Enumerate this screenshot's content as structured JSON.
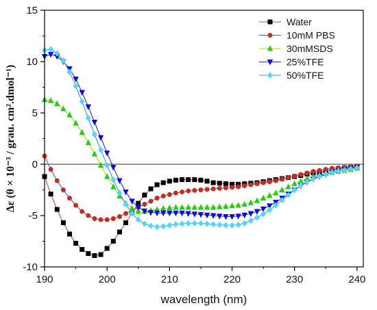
{
  "chart_data": {
    "type": "line",
    "title": "",
    "xlabel": "wavelength (nm)",
    "ylabel": "Δε (θ × 10⁻³ / grau. cm².dmol⁻¹)",
    "xlim": [
      190,
      241
    ],
    "ylim": [
      -10,
      15
    ],
    "x_ticks": [
      "190",
      "200",
      "210",
      "220",
      "230",
      "240"
    ],
    "y_ticks": [
      "-10",
      "-5",
      "0",
      "5",
      "10",
      "15"
    ],
    "zero_line": true,
    "grid": false,
    "legend_position": "top-right",
    "series": [
      {
        "name": "Water",
        "color": "#000000",
        "line_color": "#d04040",
        "marker": "square",
        "x": [
          190,
          191,
          192,
          193,
          194,
          195,
          196,
          197,
          198,
          199,
          200,
          201,
          202,
          203,
          204,
          205,
          206,
          207,
          208,
          209,
          210,
          211,
          212,
          213,
          214,
          215,
          216,
          217,
          218,
          219,
          220,
          221,
          222,
          223,
          224,
          225,
          226,
          227,
          228,
          229,
          230,
          231,
          232,
          233,
          234,
          235,
          236,
          237,
          238,
          239,
          240
        ],
        "y": [
          -1.2,
          -2.9,
          -4.4,
          -5.7,
          -6.8,
          -7.7,
          -8.3,
          -8.7,
          -8.9,
          -8.8,
          -8.2,
          -7.5,
          -6.6,
          -5.7,
          -4.7,
          -3.8,
          -3.0,
          -2.4,
          -2.0,
          -1.8,
          -1.65,
          -1.55,
          -1.5,
          -1.5,
          -1.5,
          -1.55,
          -1.65,
          -1.8,
          -1.85,
          -1.9,
          -1.95,
          -1.95,
          -1.9,
          -1.85,
          -1.8,
          -1.7,
          -1.6,
          -1.5,
          -1.4,
          -1.3,
          -1.2,
          -1.1,
          -0.95,
          -0.85,
          -0.75,
          -0.65,
          -0.55,
          -0.45,
          -0.35,
          -0.3,
          -0.25
        ]
      },
      {
        "name": "10mM PBS",
        "color": "#c03020",
        "line_color": "#4060c0",
        "marker": "circle",
        "x": [
          190,
          191,
          192,
          193,
          194,
          195,
          196,
          197,
          198,
          199,
          200,
          201,
          202,
          203,
          204,
          205,
          206,
          207,
          208,
          209,
          210,
          211,
          212,
          213,
          214,
          215,
          216,
          217,
          218,
          219,
          220,
          221,
          222,
          223,
          224,
          225,
          226,
          227,
          228,
          229,
          230,
          231,
          232,
          233,
          234,
          235,
          236,
          237,
          238,
          239,
          240
        ],
        "y": [
          0.8,
          -0.5,
          -1.6,
          -2.5,
          -3.3,
          -4.0,
          -4.6,
          -5.0,
          -5.3,
          -5.4,
          -5.4,
          -5.3,
          -5.1,
          -4.8,
          -4.5,
          -4.2,
          -3.9,
          -3.6,
          -3.3,
          -3.1,
          -2.95,
          -2.8,
          -2.7,
          -2.6,
          -2.55,
          -2.5,
          -2.45,
          -2.4,
          -2.35,
          -2.3,
          -2.25,
          -2.2,
          -2.1,
          -2.0,
          -1.9,
          -1.8,
          -1.7,
          -1.6,
          -1.45,
          -1.3,
          -1.15,
          -1.0,
          -0.85,
          -0.7,
          -0.6,
          -0.5,
          -0.4,
          -0.35,
          -0.3,
          -0.25,
          -0.2
        ]
      },
      {
        "name": "30mMSDS",
        "color": "#22cc22",
        "line_color": "#d4c000",
        "marker": "triangle-up",
        "x": [
          190,
          191,
          192,
          193,
          194,
          195,
          196,
          197,
          198,
          199,
          200,
          201,
          202,
          203,
          204,
          205,
          206,
          207,
          208,
          209,
          210,
          211,
          212,
          213,
          214,
          215,
          216,
          217,
          218,
          219,
          220,
          221,
          222,
          223,
          224,
          225,
          226,
          227,
          228,
          229,
          230,
          231,
          232,
          233,
          234,
          235,
          236,
          237,
          238,
          239,
          240
        ],
        "y": [
          6.3,
          6.2,
          5.9,
          5.4,
          4.8,
          4.0,
          3.1,
          2.1,
          1.0,
          -0.1,
          -1.2,
          -2.2,
          -3.1,
          -3.8,
          -4.3,
          -4.6,
          -4.6,
          -4.5,
          -4.4,
          -4.3,
          -4.25,
          -4.2,
          -4.2,
          -4.2,
          -4.2,
          -4.2,
          -4.2,
          -4.2,
          -4.15,
          -4.1,
          -4.05,
          -4.0,
          -3.9,
          -3.75,
          -3.55,
          -3.3,
          -3.05,
          -2.8,
          -2.5,
          -2.2,
          -1.9,
          -1.65,
          -1.4,
          -1.2,
          -1.05,
          -0.9,
          -0.8,
          -0.7,
          -0.6,
          -0.5,
          -0.4
        ]
      },
      {
        "name": "25%TFE",
        "color": "#0a0ae0",
        "line_color": "#3030a0",
        "marker": "triangle-down",
        "x": [
          190,
          191,
          192,
          193,
          194,
          195,
          196,
          197,
          198,
          199,
          200,
          201,
          202,
          203,
          204,
          205,
          206,
          207,
          208,
          209,
          210,
          211,
          212,
          213,
          214,
          215,
          216,
          217,
          218,
          219,
          220,
          221,
          222,
          223,
          224,
          225,
          226,
          227,
          228,
          229,
          230,
          231,
          232,
          233,
          234,
          235,
          236,
          237,
          238,
          239,
          240
        ],
        "y": [
          10.5,
          10.7,
          10.5,
          10.0,
          9.3,
          8.3,
          7.0,
          5.6,
          4.1,
          2.6,
          1.1,
          -0.3,
          -1.6,
          -2.7,
          -3.6,
          -4.2,
          -4.55,
          -4.7,
          -4.75,
          -4.75,
          -4.75,
          -4.75,
          -4.75,
          -4.8,
          -4.85,
          -4.9,
          -4.95,
          -5.0,
          -5.05,
          -5.1,
          -5.1,
          -5.05,
          -4.95,
          -4.8,
          -4.6,
          -4.35,
          -4.05,
          -3.7,
          -3.3,
          -2.9,
          -2.5,
          -2.1,
          -1.75,
          -1.45,
          -1.2,
          -1.0,
          -0.8,
          -0.65,
          -0.5,
          -0.4,
          -0.3
        ]
      },
      {
        "name": "50%TFE",
        "color": "#55d4ff",
        "line_color": "#35a0c0",
        "marker": "diamond",
        "x": [
          190,
          191,
          192,
          193,
          194,
          195,
          196,
          197,
          198,
          199,
          200,
          201,
          202,
          203,
          204,
          205,
          206,
          207,
          208,
          209,
          210,
          211,
          212,
          213,
          214,
          215,
          216,
          217,
          218,
          219,
          220,
          221,
          222,
          223,
          224,
          225,
          226,
          227,
          228,
          229,
          230,
          231,
          232,
          233,
          234,
          235,
          236,
          237,
          238,
          239,
          240
        ],
        "y": [
          11.1,
          11.2,
          10.8,
          10.1,
          9.0,
          7.6,
          6.1,
          4.5,
          2.9,
          1.4,
          -0.1,
          -1.5,
          -2.8,
          -3.9,
          -4.8,
          -5.4,
          -5.8,
          -6.0,
          -6.1,
          -6.05,
          -5.95,
          -5.85,
          -5.8,
          -5.75,
          -5.75,
          -5.75,
          -5.8,
          -5.85,
          -5.9,
          -5.95,
          -5.95,
          -5.9,
          -5.75,
          -5.5,
          -5.2,
          -4.85,
          -4.45,
          -4.0,
          -3.5,
          -3.0,
          -2.5,
          -2.05,
          -1.7,
          -1.4,
          -1.15,
          -0.95,
          -0.8,
          -0.65,
          -0.55,
          -0.45,
          -0.35
        ]
      }
    ]
  }
}
